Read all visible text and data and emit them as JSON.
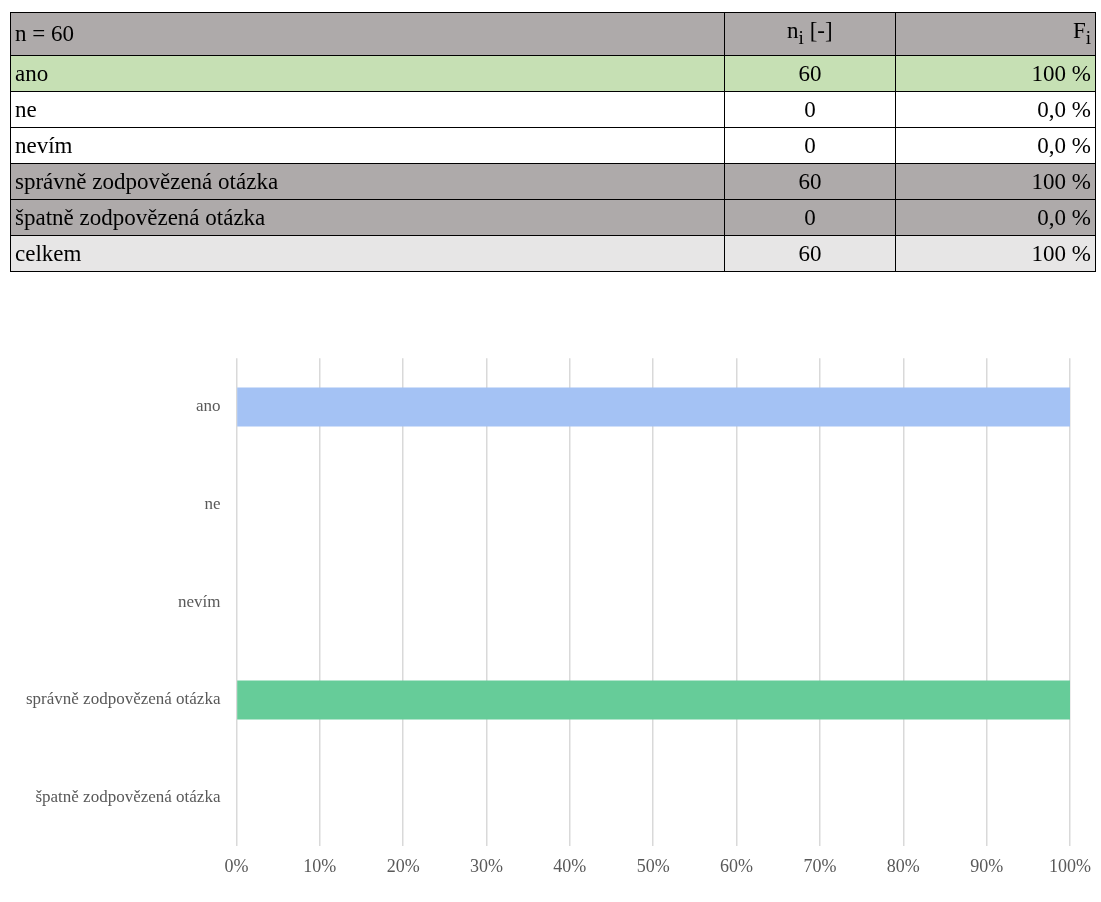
{
  "chart_data": [
    {
      "type": "other",
      "title": "n = 60",
      "categories": [
        "ano",
        "ne",
        "nevím",
        "správně zodpovězená otázka",
        "špatně zodpovězená otázka",
        "celkem"
      ],
      "colors": [
        "#c6e0b4",
        "#ffffff",
        "#ffffff",
        "#aeaaaa",
        "#aeaaaa",
        "#e7e6e6"
      ],
      "data_labels": true,
      "series": [
        {
          "name": "n$_{i}$ [-]",
          "colors": [
            "#c6e0b4",
            "#ffffff",
            "#ffffff",
            "#aeaaaa",
            "#aeaaaa",
            "#e7e6e6"
          ],
          "values": [
            60,
            0,
            0,
            60,
            0,
            60
          ]
        },
        {
          "name": "F$_{i}$",
          "colors": [
            "#c6e0b4",
            "#ffffff",
            "#ffffff",
            "#aeaaaa",
            "#aeaaaa",
            "#e7e6e6"
          ],
          "values": [
            100,
            0,
            0,
            100,
            0,
            100
          ],
          "value_labels": [
            "100 %",
            "0,0 %",
            "0,0 %",
            "100 %",
            "0,0 %",
            "100 %"
          ]
        }
      ]
    },
    {
      "type": "bar",
      "orientation": "horizontal",
      "categories": [
        "ano",
        "ne",
        "nevím",
        "správně zodpovězená otázka",
        "špatně zodpovězená otázka"
      ],
      "values": [
        100,
        0,
        0,
        100,
        0
      ],
      "colors": [
        "#a4c2f4",
        "#a4c2f4",
        "#a4c2f4",
        "#66cc99",
        "#66cc99"
      ],
      "xlim": [
        0,
        100
      ],
      "xticks": [
        {
          "value": 0,
          "label": "0%"
        },
        {
          "value": 10,
          "label": "10%"
        },
        {
          "value": 20,
          "label": "20%"
        },
        {
          "value": 30,
          "label": "30%"
        },
        {
          "value": 40,
          "label": "40%"
        },
        {
          "value": 50,
          "label": "50%"
        },
        {
          "value": 60,
          "label": "60%"
        },
        {
          "value": 70,
          "label": "70%"
        },
        {
          "value": 80,
          "label": "80%"
        },
        {
          "value": 90,
          "label": "90%"
        },
        {
          "value": 100,
          "label": "100%"
        }
      ],
      "grid": "x",
      "legend": false
    }
  ]
}
